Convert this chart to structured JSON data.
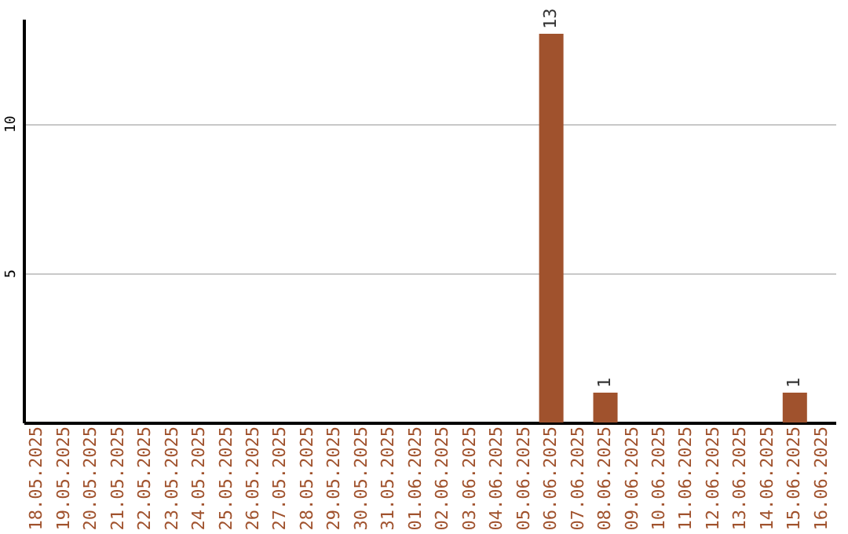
{
  "chart_data": {
    "type": "bar",
    "categories": [
      "18.05.2025",
      "19.05.2025",
      "20.05.2025",
      "21.05.2025",
      "22.05.2025",
      "23.05.2025",
      "24.05.2025",
      "25.05.2025",
      "26.05.2025",
      "27.05.2025",
      "28.05.2025",
      "29.05.2025",
      "30.05.2025",
      "31.05.2025",
      "01.06.2025",
      "02.06.2025",
      "03.06.2025",
      "04.06.2025",
      "05.06.2025",
      "06.06.2025",
      "07.06.2025",
      "08.06.2025",
      "09.06.2025",
      "10.06.2025",
      "11.06.2025",
      "12.06.2025",
      "13.06.2025",
      "14.06.2025",
      "15.06.2025",
      "16.06.2025"
    ],
    "values": [
      0,
      0,
      0,
      0,
      0,
      0,
      0,
      0,
      0,
      0,
      0,
      0,
      0,
      0,
      0,
      0,
      0,
      0,
      0,
      13,
      0,
      1,
      0,
      0,
      0,
      0,
      0,
      0,
      1,
      0
    ],
    "value_labels": [
      null,
      null,
      null,
      null,
      null,
      null,
      null,
      null,
      null,
      null,
      null,
      null,
      null,
      null,
      null,
      null,
      null,
      null,
      null,
      "13",
      null,
      "1",
      null,
      null,
      null,
      null,
      null,
      null,
      "1",
      null
    ],
    "color": "#a0522d",
    "ylim": [
      0,
      13.5
    ],
    "yticks": [
      5,
      10
    ],
    "grid": "y"
  }
}
